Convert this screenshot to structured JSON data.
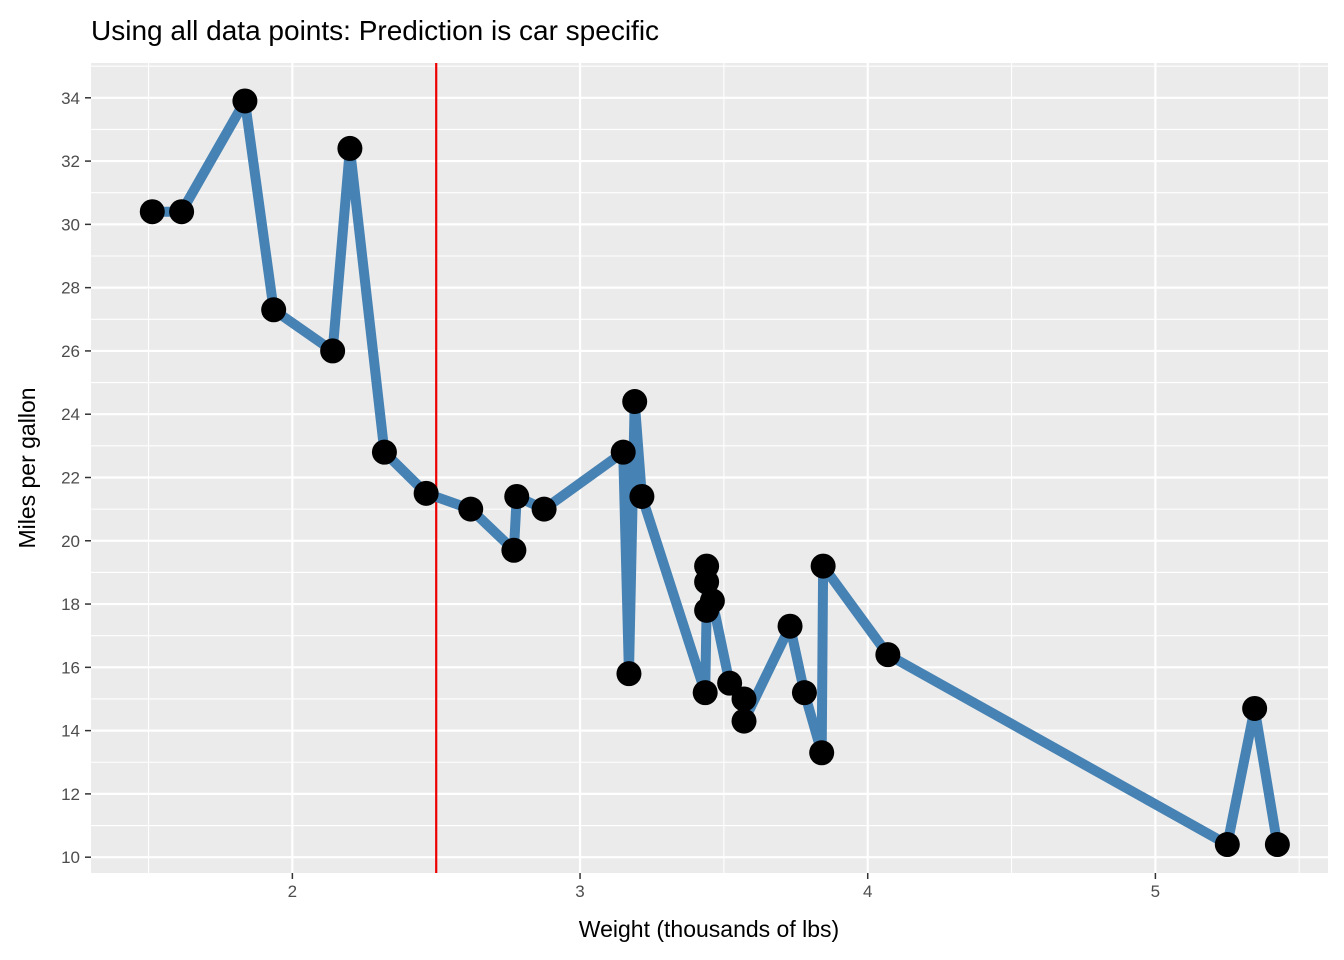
{
  "chart_data": {
    "type": "line",
    "title": "Using all data points: Prediction is car specific",
    "xlabel": "Weight (thousands of lbs)",
    "ylabel": "Miles per gallon",
    "xlim": [
      1.3,
      5.6
    ],
    "ylim": [
      9.5,
      35.1
    ],
    "x_ticks": [
      2,
      3,
      4,
      5
    ],
    "x_minor_ticks": [
      1.5,
      2.5,
      3.5,
      4.5,
      5.5
    ],
    "y_ticks": [
      10,
      12,
      14,
      16,
      18,
      20,
      22,
      24,
      26,
      28,
      30,
      32,
      34
    ],
    "y_minor_ticks": [
      11,
      13,
      15,
      17,
      19,
      21,
      23,
      25,
      27,
      29,
      31,
      33,
      35
    ],
    "grid": true,
    "vline": {
      "x": 2.5,
      "color": "#ee0000"
    },
    "line_color": "#4682b4",
    "point_color": "#000000",
    "panel_background": "#ebebeb",
    "series": [
      {
        "x": [
          1.513,
          1.615,
          1.835,
          1.935,
          2.14,
          2.2,
          2.32,
          2.465,
          2.62,
          2.77,
          2.78,
          2.875,
          3.15,
          3.17,
          3.19,
          3.215,
          3.435,
          3.44,
          3.44,
          3.44,
          3.46,
          3.52,
          3.57,
          3.57,
          3.73,
          3.78,
          3.84,
          3.845,
          4.07,
          5.25,
          5.345,
          5.424
        ],
        "y": [
          30.4,
          30.4,
          33.9,
          27.3,
          26.0,
          32.4,
          22.8,
          21.5,
          21.0,
          19.7,
          21.4,
          21.0,
          22.8,
          15.8,
          24.4,
          21.4,
          15.2,
          17.8,
          18.7,
          19.2,
          18.1,
          15.5,
          15.0,
          14.3,
          17.3,
          15.2,
          13.3,
          19.2,
          16.4,
          10.4,
          14.7,
          10.4
        ]
      }
    ]
  }
}
